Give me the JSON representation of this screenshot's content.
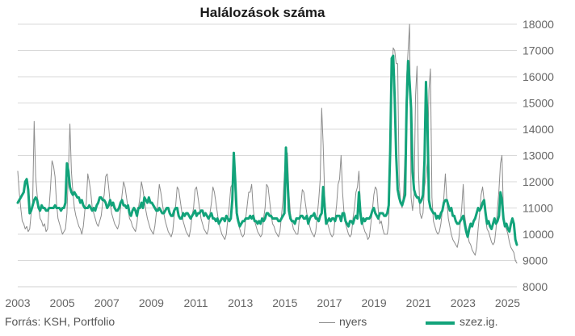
{
  "chart_data": {
    "type": "line",
    "title": "Halálozások száma",
    "source": "Forrás: KSH, Portfolio",
    "xlabel": "",
    "ylabel": "",
    "x_start": "2003-01",
    "x_end": "2025-06",
    "x_ticks": [
      "2003",
      "2005",
      "2007",
      "2009",
      "2011",
      "2013",
      "2015",
      "2017",
      "2019",
      "2021",
      "2023",
      "2025"
    ],
    "ylim": [
      8000,
      18000
    ],
    "y_ticks": [
      "8000",
      "9000",
      "10000",
      "11000",
      "12000",
      "13000",
      "14000",
      "15000",
      "16000",
      "17000",
      "18000"
    ],
    "grid": true,
    "legend": "bottom-right",
    "series": [
      {
        "name": "nyers",
        "color": "#8c8c8c",
        "values": [
          12400,
          11600,
          11000,
          10500,
          10400,
          10200,
          10300,
          10100,
          10200,
          10800,
          11200,
          14300,
          12200,
          11500,
          11000,
          10600,
          10500,
          10300,
          10400,
          10100,
          10200,
          11000,
          11800,
          12800,
          12600,
          12200,
          11200,
          10600,
          10400,
          10200,
          10000,
          10100,
          10200,
          10800,
          12400,
          14200,
          12400,
          11600,
          11000,
          10700,
          10500,
          10300,
          10200,
          10000,
          10300,
          10900,
          11200,
          12300,
          12000,
          11600,
          11000,
          10800,
          10600,
          10400,
          10300,
          10500,
          10700,
          11200,
          11500,
          12200,
          12300,
          11800,
          11200,
          10800,
          10600,
          10400,
          10300,
          10200,
          10400,
          11000,
          11500,
          12000,
          11800,
          11400,
          11000,
          10600,
          10500,
          10300,
          10200,
          10100,
          10400,
          11000,
          11400,
          12000,
          11700,
          11300,
          10900,
          10600,
          10400,
          10200,
          10100,
          10000,
          10300,
          10800,
          11200,
          11900,
          11600,
          11200,
          10800,
          10500,
          10300,
          10100,
          10000,
          9900,
          10100,
          10700,
          11100,
          11800,
          11700,
          11300,
          10900,
          10500,
          10300,
          10100,
          10000,
          9900,
          10200,
          10700,
          11000,
          11700,
          11800,
          11400,
          11000,
          10600,
          10400,
          10200,
          10100,
          10000,
          10200,
          10800,
          11200,
          11800,
          11600,
          11200,
          10800,
          10400,
          10200,
          10000,
          9900,
          9800,
          10000,
          10600,
          11100,
          11800,
          11900,
          12800,
          11200,
          10600,
          10400,
          10200,
          10000,
          9900,
          10000,
          10600,
          11100,
          11600,
          11600,
          11900,
          11000,
          10500,
          10300,
          10100,
          10000,
          9900,
          10000,
          10600,
          11000,
          11900,
          11800,
          11300,
          10800,
          10400,
          10300,
          10100,
          10000,
          9900,
          10100,
          10700,
          11300,
          12300,
          13100,
          13100,
          11600,
          10800,
          10500,
          10200,
          10100,
          10000,
          10000,
          10600,
          11100,
          11700,
          11600,
          11200,
          10800,
          10500,
          10300,
          10100,
          10000,
          9900,
          10100,
          10700,
          11300,
          12100,
          14800,
          13400,
          11500,
          10700,
          10400,
          10200,
          10000,
          9900,
          10000,
          10600,
          11100,
          11900,
          12100,
          13000,
          11600,
          10800,
          10400,
          10200,
          10000,
          9900,
          10000,
          10600,
          11000,
          11600,
          11800,
          12400,
          11100,
          10500,
          10300,
          10100,
          10000,
          9800,
          9900,
          10400,
          10900,
          11500,
          11800,
          11700,
          10900,
          10400,
          10500,
          10200,
          10000,
          10000,
          10000,
          10400,
          12800,
          15600,
          17100,
          17000,
          16500,
          16500,
          12000,
          11200,
          11000,
          11600,
          13200,
          16000,
          17000,
          18000,
          11400,
          10900,
          11500,
          15300,
          16400,
          12400,
          10800,
          10600,
          10800,
          11800,
          12200,
          12800,
          15500,
          16300,
          11400,
          10500,
          10300,
          10100,
          10000,
          10100,
          10400,
          10900,
          11400,
          12300,
          11300,
          10600,
          10300,
          10000,
          9800,
          9700,
          9600,
          9500,
          9800,
          10400,
          11000,
          11900,
          10700,
          10300,
          10000,
          9700,
          9600,
          9400,
          9300,
          9200,
          9500,
          10200,
          10800,
          11500,
          11800,
          11300,
          10600,
          10200,
          10100,
          9900,
          9700,
          9600,
          9700,
          10200,
          11000,
          11700,
          12700,
          13000,
          10800,
          10300,
          10200,
          10000,
          9700,
          9500,
          9400,
          9300,
          9000,
          8900
        ],
        "range": [
          8800,
          18000
        ]
      },
      {
        "name": "szez.ig.",
        "color": "#12a37a",
        "values": [
          11200,
          11300,
          11400,
          11500,
          11600,
          12000,
          12100,
          11700,
          10800,
          10900,
          11100,
          11300,
          11400,
          11300,
          11000,
          10900,
          11100,
          11000,
          11000,
          10900,
          10900,
          11000,
          11000,
          11000,
          11000,
          11100,
          11000,
          11000,
          11000,
          10900,
          11000,
          11000,
          11200,
          12700,
          12400,
          11800,
          11600,
          11500,
          11600,
          11500,
          11400,
          11400,
          11200,
          11300,
          11100,
          11000,
          11000,
          11000,
          11100,
          11000,
          10900,
          11000,
          10900,
          11100,
          11200,
          11400,
          11400,
          11300,
          11300,
          11200,
          11000,
          11100,
          11300,
          11100,
          11200,
          11000,
          10900,
          10900,
          11000,
          11200,
          11300,
          11100,
          11100,
          11000,
          11100,
          10800,
          10700,
          10900,
          11000,
          10900,
          10700,
          11000,
          11000,
          11200,
          11000,
          11400,
          11300,
          11200,
          11400,
          11200,
          11200,
          11100,
          11000,
          10900,
          10900,
          11000,
          10900,
          10800,
          10800,
          10900,
          11000,
          11000,
          10800,
          10700,
          10700,
          10900,
          11000,
          11000,
          10700,
          10600,
          10600,
          10800,
          10700,
          10800,
          10800,
          10700,
          10600,
          10700,
          10800,
          10900,
          10700,
          10800,
          10800,
          10900,
          10900,
          10700,
          10800,
          10700,
          10600,
          10700,
          10800,
          10600,
          10600,
          10500,
          10600,
          10400,
          10500,
          10600,
          10600,
          10500,
          10700,
          10600,
          10500,
          10600,
          11300,
          13100,
          12000,
          10800,
          10500,
          10300,
          10400,
          10500,
          10500,
          10600,
          10600,
          10600,
          10700,
          10600,
          10700,
          10500,
          10500,
          10400,
          10500,
          10400,
          10600,
          10500,
          10600,
          10800,
          10800,
          10700,
          10700,
          10600,
          10600,
          10600,
          10600,
          10500,
          10500,
          10600,
          10700,
          10800,
          13300,
          12100,
          10900,
          10600,
          10500,
          10500,
          10400,
          10600,
          10600,
          10600,
          10700,
          10700,
          10600,
          10600,
          10700,
          10400,
          10600,
          10700,
          10700,
          10800,
          10600,
          10600,
          10500,
          10700,
          10800,
          11800,
          11000,
          10400,
          10500,
          10600,
          10500,
          10600,
          10600,
          10500,
          10700,
          10700,
          10700,
          10500,
          10800,
          10800,
          10500,
          10400,
          10300,
          10500,
          10500,
          10400,
          10600,
          10700,
          10600,
          11600,
          10800,
          10400,
          10600,
          10500,
          10600,
          10600,
          10600,
          10700,
          10900,
          11000,
          10800,
          10700,
          10600,
          10800,
          10800,
          10800,
          10700,
          10700,
          10800,
          11100,
          13200,
          16700,
          16800,
          15200,
          13000,
          11700,
          11400,
          11200,
          11100,
          11300,
          11500,
          14900,
          16600,
          15800,
          14800,
          12400,
          11700,
          11500,
          11400,
          11400,
          11200,
          11300,
          11500,
          12800,
          15800,
          14200,
          11300,
          11000,
          10900,
          10800,
          10800,
          10600,
          10700,
          10600,
          10800,
          10900,
          11200,
          11300,
          11300,
          11100,
          10900,
          11000,
          10700,
          10700,
          10500,
          10400,
          10400,
          10500,
          10600,
          10700,
          10400,
          10100,
          9900,
          10200,
          10400,
          10300,
          10500,
          10600,
          10800,
          11000,
          10900,
          11000,
          11200,
          11300,
          10800,
          10400,
          10500,
          10300,
          10200,
          10400,
          10600,
          10400,
          10500,
          10700,
          11600,
          11300,
          10600,
          10300,
          10400,
          10200,
          10100,
          10400,
          10600,
          10400,
          9800,
          9600
        ],
        "range": [
          9600,
          16800
        ]
      }
    ]
  },
  "colors": {
    "grid": "#d9d9d9",
    "axis_text": "#666666",
    "title_text": "#1a1a1a"
  }
}
